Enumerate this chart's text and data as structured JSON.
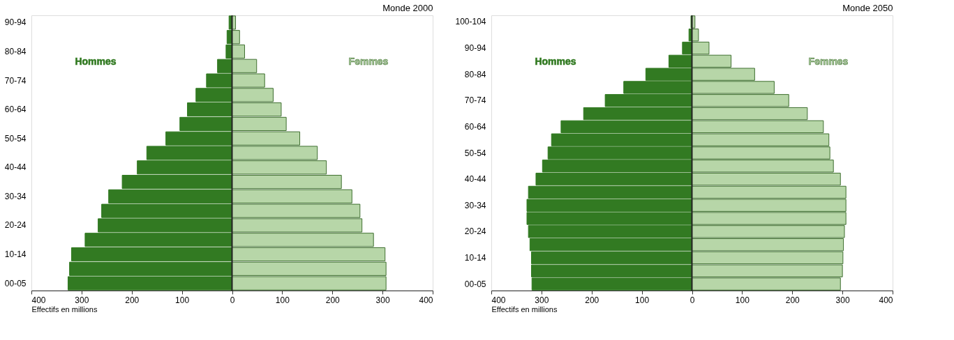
{
  "chart_data": [
    {
      "type": "bar",
      "orientation": "horizontal",
      "stacked": true,
      "title": "Monde 2000",
      "xlabel": "Effectifs en millions",
      "categories": [
        "90-94",
        null,
        "80-84",
        null,
        "70-74",
        null,
        "60-64",
        null,
        "50-54",
        null,
        "40-44",
        null,
        "30-34",
        null,
        "20-24",
        null,
        "10-14",
        null,
        "00-05"
      ],
      "series": [
        {
          "name": "Hommes",
          "color": "#327a22",
          "values": [
            -6,
            -10,
            -12,
            -29,
            -51,
            -72,
            -89,
            -104,
            -132,
            -170,
            -189,
            -219,
            -246,
            -260,
            -267,
            -293,
            -320,
            -324,
            -327
          ]
        },
        {
          "name": "Femmes",
          "color": "#b7d6a8",
          "values": [
            7,
            15,
            25,
            49,
            65,
            82,
            98,
            108,
            135,
            170,
            188,
            218,
            239,
            255,
            259,
            282,
            305,
            307,
            307
          ]
        }
      ],
      "xlim": [
        -400,
        400
      ],
      "xticks": [
        {
          "value": -400,
          "label": "400"
        },
        {
          "value": -300,
          "label": "300"
        },
        {
          "value": -200,
          "label": "200"
        },
        {
          "value": -100,
          "label": "100"
        },
        0,
        100,
        200,
        300,
        400
      ],
      "ref_lines": [
        {
          "axis": "x",
          "value": 0,
          "color": "#222222"
        }
      ],
      "grid": false,
      "legend": false
    },
    {
      "type": "bar",
      "orientation": "horizontal",
      "stacked": true,
      "title": "Monde 2050",
      "xlabel": "Effectifs en millions",
      "categories": [
        "100-104",
        null,
        "90-94",
        null,
        "80-84",
        null,
        "70-74",
        null,
        "60-64",
        null,
        "50-54",
        null,
        "40-44",
        null,
        "30-34",
        null,
        "20-24",
        null,
        "10-14",
        null,
        "00-05"
      ],
      "series": [
        {
          "name": "Hommes",
          "color": "#327a22",
          "values": [
            -2,
            -6,
            -19,
            -46,
            -92,
            -136,
            -173,
            -216,
            -261,
            -280,
            -287,
            -298,
            -311,
            -326,
            -329,
            -329,
            -326,
            -323,
            -320,
            -320,
            -319
          ]
        },
        {
          "name": "Femmes",
          "color": "#b7d6a8",
          "values": [
            6,
            13,
            34,
            78,
            125,
            164,
            193,
            230,
            262,
            273,
            275,
            282,
            296,
            307,
            307,
            307,
            304,
            302,
            301,
            300,
            296
          ]
        }
      ],
      "xlim": [
        -400,
        400
      ],
      "xticks": [
        {
          "value": -400,
          "label": "400"
        },
        {
          "value": -300,
          "label": "300"
        },
        {
          "value": -200,
          "label": "200"
        },
        {
          "value": -100,
          "label": "100"
        },
        0,
        100,
        200,
        300,
        400
      ],
      "ref_lines": [
        {
          "axis": "x",
          "value": 0,
          "color": "#222222"
        }
      ],
      "grid": false,
      "legend": false
    }
  ]
}
